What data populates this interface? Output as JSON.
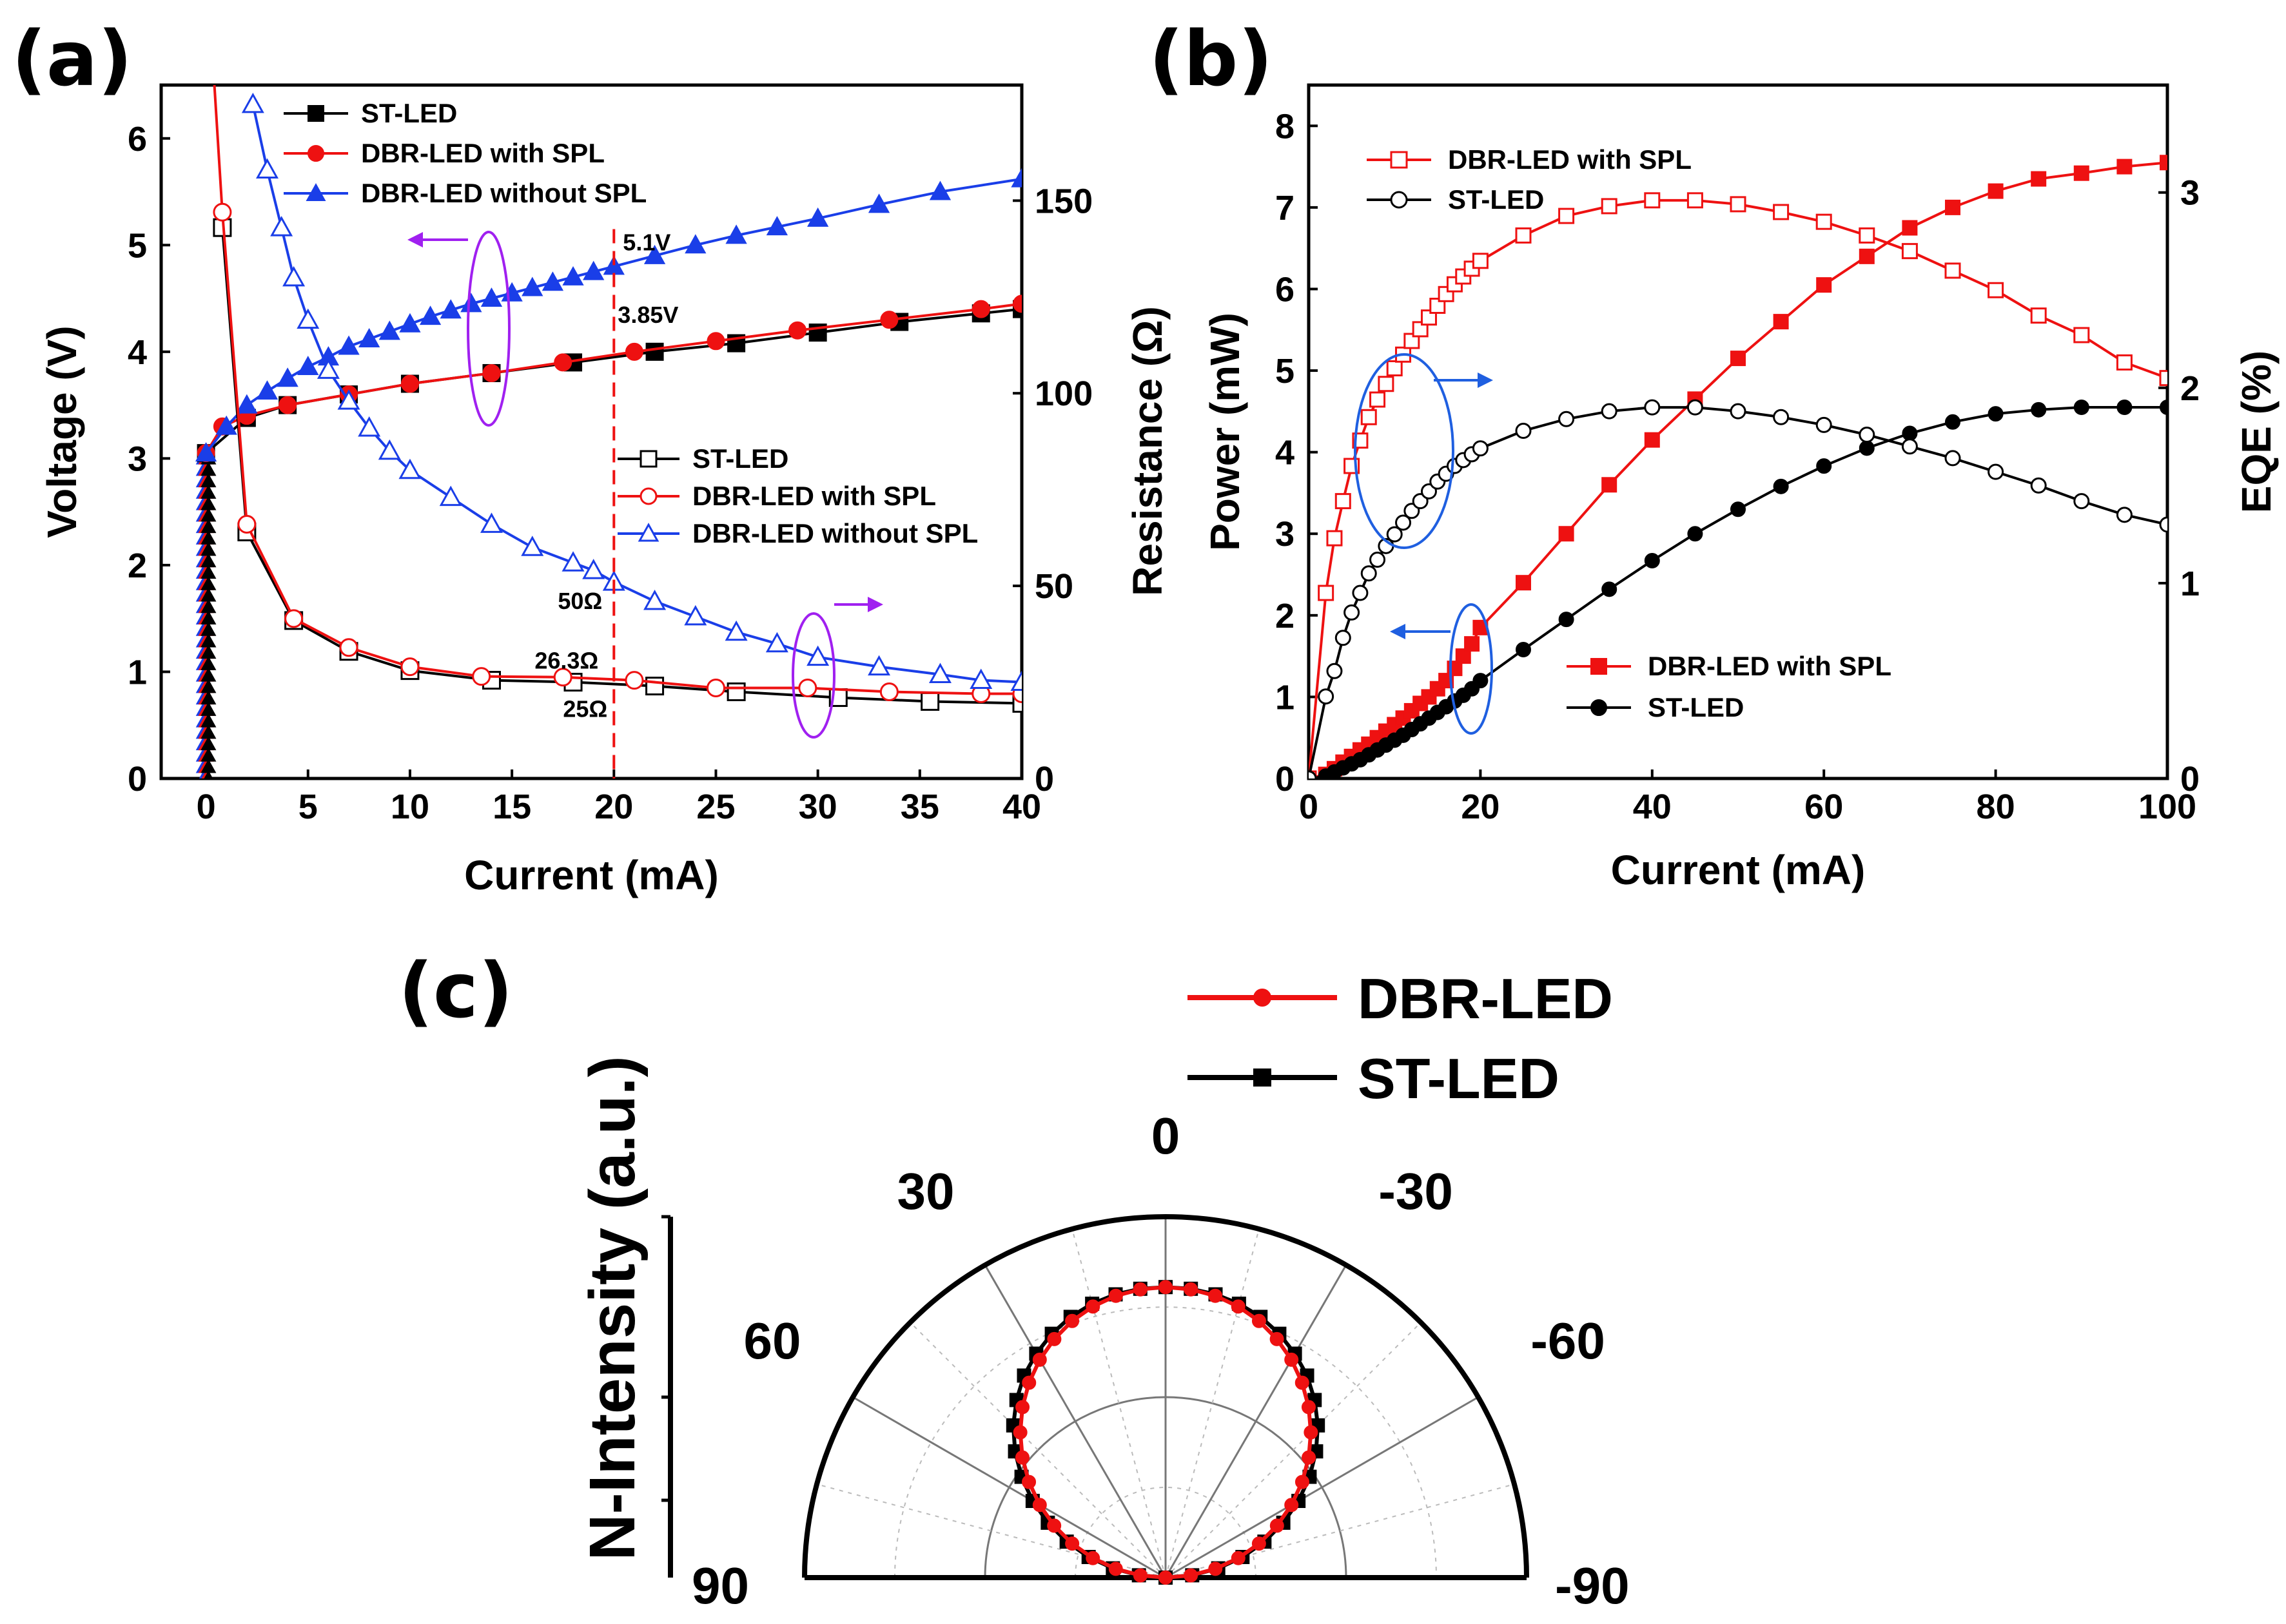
{
  "panel_labels": {
    "a": "(a)",
    "b": "(b)",
    "c": "(c)"
  },
  "colors": {
    "st": "#000000",
    "dbr": "#ee1111",
    "blue": "#1a3ee8",
    "purple": "#a020f0",
    "ellipse_blue": "#1f5fe0",
    "dashed": "#ee1111"
  },
  "chart_data": [
    {
      "panel": "a",
      "type": "line",
      "xlabel": "Current (mA)",
      "ylabel": "Voltage (V)",
      "y2label": "Resistance (Ω)",
      "xlim": [
        -2.2,
        40
      ],
      "ylim": [
        0,
        6.5
      ],
      "y2lim": [
        0,
        180
      ],
      "xticks": [
        "0",
        "5",
        "10",
        "15",
        "20",
        "25",
        "30",
        "35",
        "40"
      ],
      "yticks": [
        "0",
        "1",
        "2",
        "3",
        "4",
        "5",
        "6"
      ],
      "y2ticks": [
        "0",
        "50",
        "100",
        "150"
      ],
      "series": [
        {
          "name": "ST-LED",
          "axis": "left",
          "marker": "square",
          "filled": true,
          "color_key": "st",
          "x": [
            0,
            2,
            4,
            7,
            10,
            14,
            18,
            22,
            26,
            30,
            34,
            38,
            40
          ],
          "y": [
            3.05,
            3.38,
            3.5,
            3.6,
            3.7,
            3.8,
            3.9,
            4.0,
            4.08,
            4.18,
            4.28,
            4.36,
            4.4
          ]
        },
        {
          "name": "DBR-LED with SPL",
          "axis": "left",
          "marker": "circle",
          "filled": true,
          "color_key": "dbr",
          "x": [
            0,
            0.8,
            2,
            4,
            7,
            10,
            14,
            17.5,
            21,
            25,
            29,
            33.5,
            38,
            40
          ],
          "y": [
            3.05,
            3.3,
            3.4,
            3.5,
            3.6,
            3.7,
            3.8,
            3.9,
            4.0,
            4.1,
            4.2,
            4.3,
            4.4,
            4.45
          ]
        },
        {
          "name": "DBR-LED without SPL",
          "axis": "left",
          "marker": "triangle",
          "filled": true,
          "color_key": "blue",
          "x": [
            0,
            1,
            2,
            3,
            4,
            5,
            6,
            7,
            8,
            9,
            10,
            11,
            12,
            13,
            14,
            15,
            16,
            17,
            18,
            19,
            20,
            22,
            24,
            26,
            28,
            30,
            33,
            36,
            40
          ],
          "y": [
            3.05,
            3.3,
            3.5,
            3.63,
            3.75,
            3.86,
            3.95,
            4.05,
            4.12,
            4.19,
            4.26,
            4.33,
            4.39,
            4.45,
            4.5,
            4.55,
            4.6,
            4.65,
            4.7,
            4.75,
            4.8,
            4.9,
            5.0,
            5.09,
            5.17,
            5.25,
            5.38,
            5.5,
            5.62
          ]
        },
        {
          "name": "ST-LED",
          "axis": "right",
          "marker": "square",
          "filled": false,
          "color_key": "st",
          "x": [
            0.8,
            2,
            4.3,
            7,
            10,
            14,
            18,
            22,
            26,
            31,
            35.5,
            40
          ],
          "y": [
            143,
            64,
            41,
            33,
            28,
            25.5,
            25,
            24,
            22.5,
            21,
            20,
            19.5
          ]
        },
        {
          "name": "DBR-LED with SPL",
          "axis": "right",
          "marker": "circle",
          "filled": false,
          "color_key": "dbr",
          "x": [
            0.8,
            2,
            4.3,
            7,
            10,
            13.5,
            17.5,
            21,
            25,
            29.5,
            33.5,
            38,
            40
          ],
          "y": [
            147,
            66,
            41.5,
            34,
            29,
            26.5,
            26.3,
            25.5,
            23.5,
            23.5,
            22.5,
            22,
            22
          ]
        },
        {
          "name": "DBR-LED without SPL",
          "axis": "right",
          "marker": "triangle",
          "filled": false,
          "color_key": "blue",
          "x": [
            2.3,
            3,
            3.7,
            4.3,
            5,
            6,
            7,
            8,
            9,
            10,
            12,
            14,
            16,
            18,
            19,
            20,
            22,
            24,
            26,
            28,
            30,
            33,
            36,
            38,
            40
          ],
          "y": [
            175,
            158,
            143,
            130,
            119,
            106,
            98,
            91,
            85,
            80,
            73,
            66,
            60,
            56,
            54,
            51,
            46,
            42,
            38,
            35,
            31.5,
            29,
            27,
            25.5,
            25
          ]
        }
      ],
      "legends": {
        "voltage": [
          "ST-LED",
          "DBR-LED with SPL",
          "DBR-LED without SPL"
        ],
        "resistance": [
          "ST-LED",
          "DBR-LED with SPL",
          "DBR-LED without SPL"
        ]
      },
      "annotations": {
        "v1": "5.1V",
        "v2": "3.85V",
        "r1": "50Ω",
        "r2": "26.3Ω",
        "r3": "25Ω",
        "dashed_x": 20
      }
    },
    {
      "panel": "b",
      "type": "line",
      "xlabel": "Current (mA)",
      "ylabel": "Power (mW)",
      "y2label": "EQE (%)",
      "xlim": [
        0,
        100
      ],
      "ylim": [
        0,
        8.5
      ],
      "y2lim": [
        0,
        3.55
      ],
      "xticks": [
        "0",
        "20",
        "40",
        "60",
        "80",
        "100"
      ],
      "yticks": [
        "0",
        "1",
        "2",
        "3",
        "4",
        "5",
        "6",
        "7",
        "8"
      ],
      "y2ticks": [
        "0",
        "1",
        "2",
        "3"
      ],
      "series": [
        {
          "name": "DBR-LED with SPL",
          "axis": "left",
          "marker": "square",
          "filled": true,
          "color_key": "dbr",
          "x": [
            0,
            2,
            3,
            4,
            5,
            6,
            7,
            8,
            9,
            10,
            11,
            12,
            13,
            14,
            15,
            16,
            17,
            18,
            19,
            20,
            25,
            30,
            35,
            40,
            45,
            50,
            55,
            60,
            65,
            70,
            75,
            80,
            85,
            90,
            95,
            100
          ],
          "y": [
            0,
            0.05,
            0.12,
            0.2,
            0.27,
            0.35,
            0.42,
            0.5,
            0.58,
            0.66,
            0.74,
            0.83,
            0.92,
            1.0,
            1.1,
            1.2,
            1.35,
            1.5,
            1.65,
            1.85,
            2.4,
            3.0,
            3.6,
            4.15,
            4.65,
            5.15,
            5.6,
            6.05,
            6.4,
            6.75,
            7.0,
            7.2,
            7.35,
            7.42,
            7.5,
            7.55
          ]
        },
        {
          "name": "ST-LED",
          "axis": "left",
          "marker": "circle",
          "filled": true,
          "color_key": "st",
          "x": [
            0,
            2,
            3,
            4,
            5,
            6,
            7,
            8,
            9,
            10,
            11,
            12,
            13,
            14,
            15,
            16,
            17,
            18,
            19,
            20,
            25,
            30,
            35,
            40,
            45,
            50,
            55,
            60,
            65,
            70,
            75,
            80,
            85,
            90,
            95,
            100
          ],
          "y": [
            0,
            0.03,
            0.08,
            0.13,
            0.18,
            0.23,
            0.29,
            0.35,
            0.41,
            0.47,
            0.53,
            0.6,
            0.67,
            0.74,
            0.81,
            0.88,
            0.95,
            1.02,
            1.1,
            1.2,
            1.58,
            1.95,
            2.32,
            2.67,
            3.0,
            3.3,
            3.58,
            3.83,
            4.05,
            4.23,
            4.37,
            4.47,
            4.52,
            4.55,
            4.55,
            4.55
          ]
        },
        {
          "name": "DBR-LED with SPL",
          "axis": "right",
          "marker": "square",
          "filled": false,
          "color_key": "dbr",
          "x": [
            0,
            2,
            3,
            4,
            5,
            6,
            7,
            8,
            9,
            10,
            11,
            12,
            13,
            14,
            15,
            16,
            17,
            18,
            19,
            20,
            25,
            30,
            35,
            40,
            45,
            50,
            55,
            60,
            65,
            70,
            75,
            80,
            85,
            90,
            95,
            100
          ],
          "y": [
            0,
            0.95,
            1.23,
            1.42,
            1.6,
            1.73,
            1.85,
            1.94,
            2.02,
            2.1,
            2.17,
            2.24,
            2.3,
            2.36,
            2.42,
            2.48,
            2.53,
            2.57,
            2.61,
            2.65,
            2.78,
            2.88,
            2.93,
            2.96,
            2.96,
            2.94,
            2.9,
            2.85,
            2.78,
            2.7,
            2.6,
            2.5,
            2.37,
            2.27,
            2.13,
            2.05
          ]
        },
        {
          "name": "ST-LED",
          "axis": "right",
          "marker": "circle",
          "filled": false,
          "color_key": "st",
          "x": [
            0,
            2,
            3,
            4,
            5,
            6,
            7,
            8,
            9,
            10,
            11,
            12,
            13,
            14,
            15,
            16,
            17,
            18,
            19,
            20,
            25,
            30,
            35,
            40,
            45,
            50,
            55,
            60,
            65,
            70,
            75,
            80,
            85,
            90,
            95,
            100
          ],
          "y": [
            0,
            0.42,
            0.55,
            0.72,
            0.85,
            0.95,
            1.05,
            1.12,
            1.19,
            1.25,
            1.31,
            1.37,
            1.42,
            1.47,
            1.52,
            1.56,
            1.6,
            1.63,
            1.66,
            1.69,
            1.78,
            1.84,
            1.88,
            1.9,
            1.9,
            1.88,
            1.85,
            1.81,
            1.76,
            1.7,
            1.64,
            1.57,
            1.5,
            1.42,
            1.35,
            1.3
          ]
        }
      ],
      "legends": {
        "eqe": [
          "DBR-LED with SPL",
          "ST-LED"
        ],
        "power": [
          "DBR-LED with SPL",
          "ST-LED"
        ]
      }
    },
    {
      "panel": "c",
      "type": "polar",
      "ylabel": "N-Intensity (a.u.)",
      "angle_ticks": [
        "0",
        "30",
        "-30",
        "60",
        "-60",
        "90",
        "-90"
      ],
      "series": [
        {
          "name": "DBR-LED",
          "marker": "circle",
          "color_key": "dbr",
          "angles": [
            -90,
            -85,
            -80,
            -75,
            -70,
            -65,
            -60,
            -55,
            -50,
            -45,
            -40,
            -35,
            -30,
            -25,
            -20,
            -15,
            -10,
            -5,
            0,
            5,
            10,
            15,
            20,
            25,
            30,
            35,
            40,
            45,
            50,
            55,
            60,
            65,
            70,
            75,
            80,
            85,
            90
          ],
          "r": [
            0.0,
            0.087,
            0.174,
            0.259,
            0.342,
            0.423,
            0.5,
            0.574,
            0.643,
            0.707,
            0.766,
            0.819,
            0.866,
            0.906,
            0.94,
            0.966,
            0.985,
            0.996,
            1.0,
            0.996,
            0.985,
            0.966,
            0.94,
            0.906,
            0.866,
            0.819,
            0.766,
            0.707,
            0.643,
            0.574,
            0.5,
            0.423,
            0.342,
            0.259,
            0.174,
            0.087,
            0.0
          ]
        },
        {
          "name": "ST-LED",
          "marker": "square",
          "color_key": "st",
          "angles": [
            -90,
            -85,
            -80,
            -75,
            -70,
            -65,
            -60,
            -55,
            -50,
            -45,
            -40,
            -35,
            -30,
            -25,
            -20,
            -15,
            -10,
            -5,
            0,
            5,
            10,
            15,
            20,
            25,
            30,
            35,
            40,
            45,
            50,
            55,
            60,
            65,
            70,
            75,
            80,
            85,
            90
          ],
          "r": [
            0.0,
            0.092,
            0.184,
            0.274,
            0.362,
            0.447,
            0.528,
            0.605,
            0.676,
            0.741,
            0.798,
            0.849,
            0.89,
            0.926,
            0.955,
            0.976,
            0.99,
            0.998,
            1.0,
            0.998,
            0.99,
            0.976,
            0.955,
            0.926,
            0.89,
            0.849,
            0.798,
            0.741,
            0.676,
            0.605,
            0.528,
            0.447,
            0.362,
            0.274,
            0.184,
            0.092,
            0.0
          ]
        }
      ],
      "legend": [
        "DBR-LED",
        "ST-LED"
      ]
    }
  ]
}
